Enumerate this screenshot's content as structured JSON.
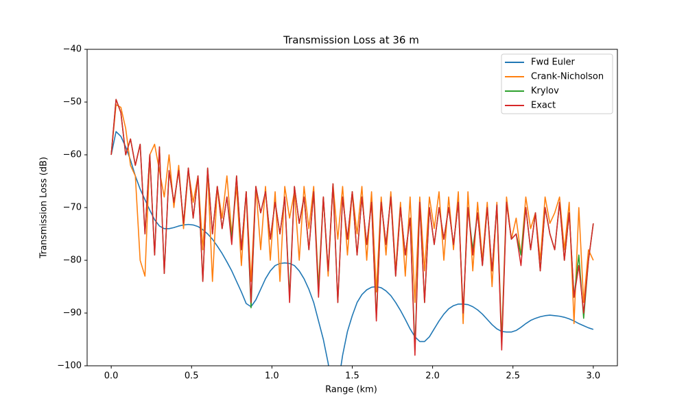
{
  "chart_data": {
    "type": "line",
    "title": "Transmission Loss at 36 m",
    "x_label": "Range (km)",
    "y_label": "Transmission Loss (dB)",
    "xlim": [
      -0.15,
      3.15
    ],
    "ylim": [
      -100,
      -40
    ],
    "xticks": [
      {
        "value": 0,
        "label": "0.0"
      },
      {
        "value": 0.5,
        "label": "0.5"
      },
      {
        "value": 1,
        "label": "1.0"
      },
      {
        "value": 1.5,
        "label": "1.5"
      },
      {
        "value": 2,
        "label": "2.0"
      },
      {
        "value": 2.5,
        "label": "2.5"
      },
      {
        "value": 3,
        "label": "3.0"
      }
    ],
    "yticks": [
      {
        "value": -100,
        "label": "−100"
      },
      {
        "value": -90,
        "label": "−90"
      },
      {
        "value": -80,
        "label": "−80"
      },
      {
        "value": -70,
        "label": "−70"
      },
      {
        "value": -60,
        "label": "−60"
      },
      {
        "value": -50,
        "label": "−50"
      },
      {
        "value": -40,
        "label": "−40"
      }
    ],
    "legend": "upper right",
    "x": [
      0,
      0.03,
      0.06,
      0.09,
      0.12,
      0.15,
      0.18,
      0.21,
      0.24,
      0.27,
      0.3,
      0.33,
      0.36,
      0.39,
      0.42,
      0.45,
      0.48,
      0.51,
      0.54,
      0.57,
      0.6,
      0.63,
      0.66,
      0.69,
      0.72,
      0.75,
      0.78,
      0.81,
      0.84,
      0.87,
      0.9,
      0.93,
      0.96,
      0.99,
      1.02,
      1.05,
      1.08,
      1.11,
      1.14,
      1.17,
      1.2,
      1.23,
      1.26,
      1.29,
      1.32,
      1.35,
      1.38,
      1.41,
      1.44,
      1.47,
      1.5,
      1.53,
      1.56,
      1.59,
      1.62,
      1.65,
      1.68,
      1.71,
      1.74,
      1.77,
      1.8,
      1.83,
      1.86,
      1.89,
      1.92,
      1.95,
      1.98,
      2.01,
      2.04,
      2.07,
      2.1,
      2.13,
      2.16,
      2.19,
      2.22,
      2.25,
      2.28,
      2.31,
      2.34,
      2.37,
      2.4,
      2.43,
      2.46,
      2.49,
      2.52,
      2.55,
      2.58,
      2.61,
      2.64,
      2.67,
      2.7,
      2.73,
      2.76,
      2.79,
      2.82,
      2.85,
      2.88,
      2.91,
      2.94,
      2.97,
      3.0
    ],
    "series": [
      {
        "name": "Fwd Euler",
        "color": "#1f77b4",
        "values": [
          -60,
          -55.6,
          -56.5,
          -58.5,
          -61,
          -64,
          -66.5,
          -68.5,
          -70.5,
          -72.3,
          -73.5,
          -74,
          -74,
          -73.8,
          -73.5,
          -73.3,
          -73.2,
          -73.3,
          -73.6,
          -74.2,
          -75,
          -76,
          -77.3,
          -78.7,
          -80.3,
          -82,
          -84,
          -86,
          -88.2,
          -88.8,
          -87.5,
          -85.5,
          -83.5,
          -82,
          -81,
          -80.6,
          -80.5,
          -80.6,
          -81,
          -82,
          -83.5,
          -85.5,
          -88,
          -91.5,
          -95,
          -99.5,
          -106,
          -104,
          -98,
          -93.5,
          -90.5,
          -88,
          -86.5,
          -85.6,
          -85.1,
          -85,
          -85.2,
          -85.8,
          -86.7,
          -88,
          -89.5,
          -91.2,
          -93,
          -94.5,
          -95.4,
          -95.4,
          -94.5,
          -93,
          -91.5,
          -90.2,
          -89.2,
          -88.6,
          -88.3,
          -88.3,
          -88.4,
          -88.8,
          -89.4,
          -90.2,
          -91.2,
          -92.2,
          -93,
          -93.5,
          -93.6,
          -93.6,
          -93.3,
          -92.7,
          -92,
          -91.4,
          -91,
          -90.7,
          -90.5,
          -90.4,
          -90.5,
          -90.6,
          -90.8,
          -91.1,
          -91.5,
          -92,
          -92.4,
          -92.8,
          -93.1
        ]
      },
      {
        "name": "Crank-Nicholson",
        "color": "#ff7f0e",
        "values": [
          -60,
          -50.5,
          -51,
          -55,
          -62,
          -64,
          -80,
          -83,
          -60,
          -58,
          -63,
          -68,
          -60,
          -70,
          -62,
          -74,
          -63,
          -69,
          -64,
          -78,
          -63,
          -84,
          -66,
          -72,
          -64,
          -75,
          -66,
          -81,
          -67,
          -84,
          -66,
          -78,
          -66,
          -80,
          -67,
          -84,
          -66,
          -72,
          -67,
          -80,
          -66,
          -74,
          -66,
          -85,
          -68,
          -83,
          -65.5,
          -76,
          -66,
          -79,
          -67,
          -75,
          -66,
          -80,
          -67,
          -86,
          -68,
          -79,
          -67,
          -82,
          -69,
          -83,
          -68,
          -88,
          -68,
          -82,
          -68,
          -74,
          -67,
          -80,
          -68,
          -78,
          -67,
          -92,
          -67,
          -82,
          -69,
          -80,
          -69,
          -85,
          -69,
          -95,
          -68,
          -76,
          -72,
          -79,
          -68,
          -74,
          -71,
          -80,
          -68,
          -73,
          -71,
          -68,
          -78,
          -69,
          -92,
          -70,
          -88,
          -78,
          -80
        ]
      },
      {
        "name": "Krylov",
        "color": "#2ca02c",
        "values": [
          -60,
          -49.5,
          -52,
          -60,
          -57,
          -62,
          -58,
          -75,
          -60,
          -79,
          -58.5,
          -82.5,
          -63,
          -69,
          -63,
          -73,
          -62.5,
          -72,
          -64,
          -84,
          -62.5,
          -75,
          -66,
          -74,
          -68,
          -76,
          -64,
          -78,
          -67,
          -89,
          -66,
          -71,
          -67,
          -76,
          -69,
          -75,
          -68,
          -87,
          -66,
          -73,
          -68,
          -78,
          -67,
          -86,
          -68,
          -82,
          -65.5,
          -88,
          -68,
          -76,
          -67,
          -79,
          -68,
          -77,
          -69,
          -91,
          -69,
          -77,
          -68,
          -83,
          -70,
          -79,
          -72,
          -97,
          -69,
          -88,
          -70,
          -77,
          -70,
          -76,
          -70,
          -77,
          -69,
          -90,
          -70,
          -78,
          -71,
          -81,
          -70,
          -82,
          -69.5,
          -96,
          -69,
          -76,
          -75,
          -79,
          -70,
          -78,
          -71,
          -82,
          -70,
          -75,
          -78,
          -69,
          -80,
          -71,
          -87,
          -79,
          -91,
          -80,
          -73
        ]
      },
      {
        "name": "Exact",
        "color": "#d62728",
        "values": [
          -60,
          -49.5,
          -52,
          -60,
          -57,
          -62,
          -58,
          -75,
          -60,
          -79,
          -58.5,
          -82.5,
          -63,
          -69,
          -63,
          -73,
          -62.5,
          -72,
          -64,
          -84,
          -62.5,
          -75,
          -66,
          -74,
          -68,
          -77,
          -64,
          -78,
          -67,
          -88,
          -66,
          -71,
          -67,
          -76,
          -69,
          -75,
          -68,
          -88,
          -66,
          -73,
          -68,
          -78,
          -67,
          -87,
          -68,
          -82,
          -65.5,
          -88,
          -68,
          -76,
          -67,
          -79,
          -68,
          -77,
          -69,
          -91.5,
          -69,
          -77,
          -68,
          -83,
          -70,
          -79,
          -72,
          -98,
          -69,
          -88,
          -70,
          -77,
          -70,
          -76,
          -70,
          -77,
          -69,
          -90,
          -70,
          -79,
          -71,
          -81,
          -70,
          -82,
          -69.5,
          -97,
          -69,
          -76,
          -75,
          -81,
          -70,
          -78,
          -71,
          -82,
          -70,
          -75,
          -78,
          -69,
          -80,
          -71,
          -87,
          -81,
          -90,
          -80,
          -73
        ]
      }
    ]
  }
}
